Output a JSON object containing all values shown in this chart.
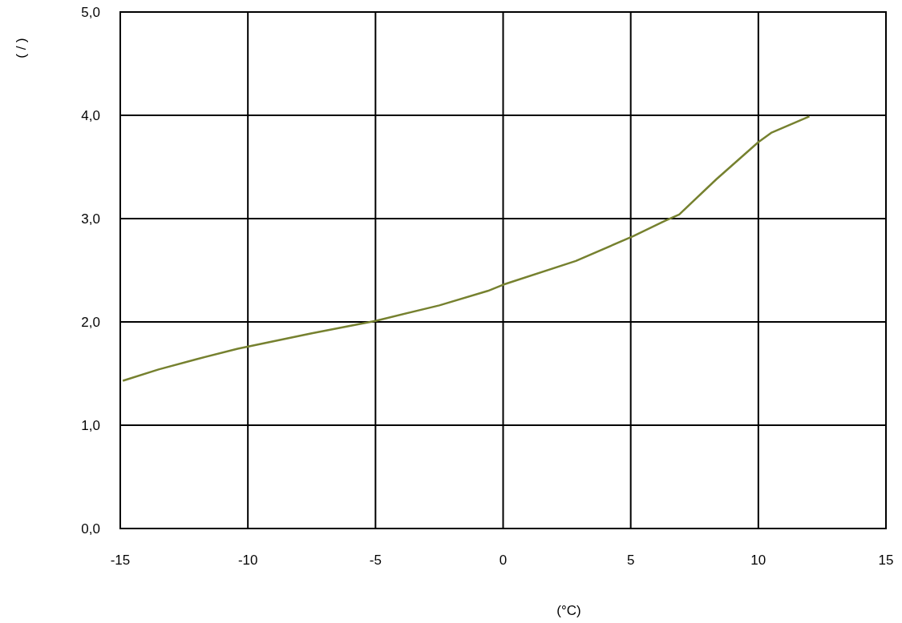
{
  "chart_data": {
    "type": "line",
    "xlabel": "(°C)",
    "ylabel": "( / )",
    "x": [
      -14.9,
      -13.5,
      -12.0,
      -10.4,
      -7.5,
      -5.0,
      -2.5,
      -0.6,
      0.0,
      2.85,
      5.1,
      6.35,
      6.9,
      8.35,
      10.0,
      10.5,
      12.0
    ],
    "series": [
      {
        "color": "#76812f",
        "values": [
          1.43,
          1.54,
          1.64,
          1.74,
          1.89,
          2.01,
          2.16,
          2.3,
          2.36,
          2.59,
          2.83,
          2.98,
          3.04,
          3.38,
          3.74,
          3.83,
          3.99
        ]
      }
    ],
    "xlim": [
      -15,
      15
    ],
    "xticks": [
      -15,
      -10,
      -5,
      0,
      5,
      10,
      15
    ],
    "ylim": [
      0,
      5
    ],
    "yticks": [
      {
        "value": 0,
        "label": "0,0"
      },
      {
        "value": 1,
        "label": "1,0"
      },
      {
        "value": 2,
        "label": "2,0"
      },
      {
        "value": 3,
        "label": "3,0"
      },
      {
        "value": 4,
        "label": "4,0"
      },
      {
        "value": 5,
        "label": "5,0"
      }
    ],
    "grid": true,
    "marker": "none",
    "line_style": "solid"
  }
}
